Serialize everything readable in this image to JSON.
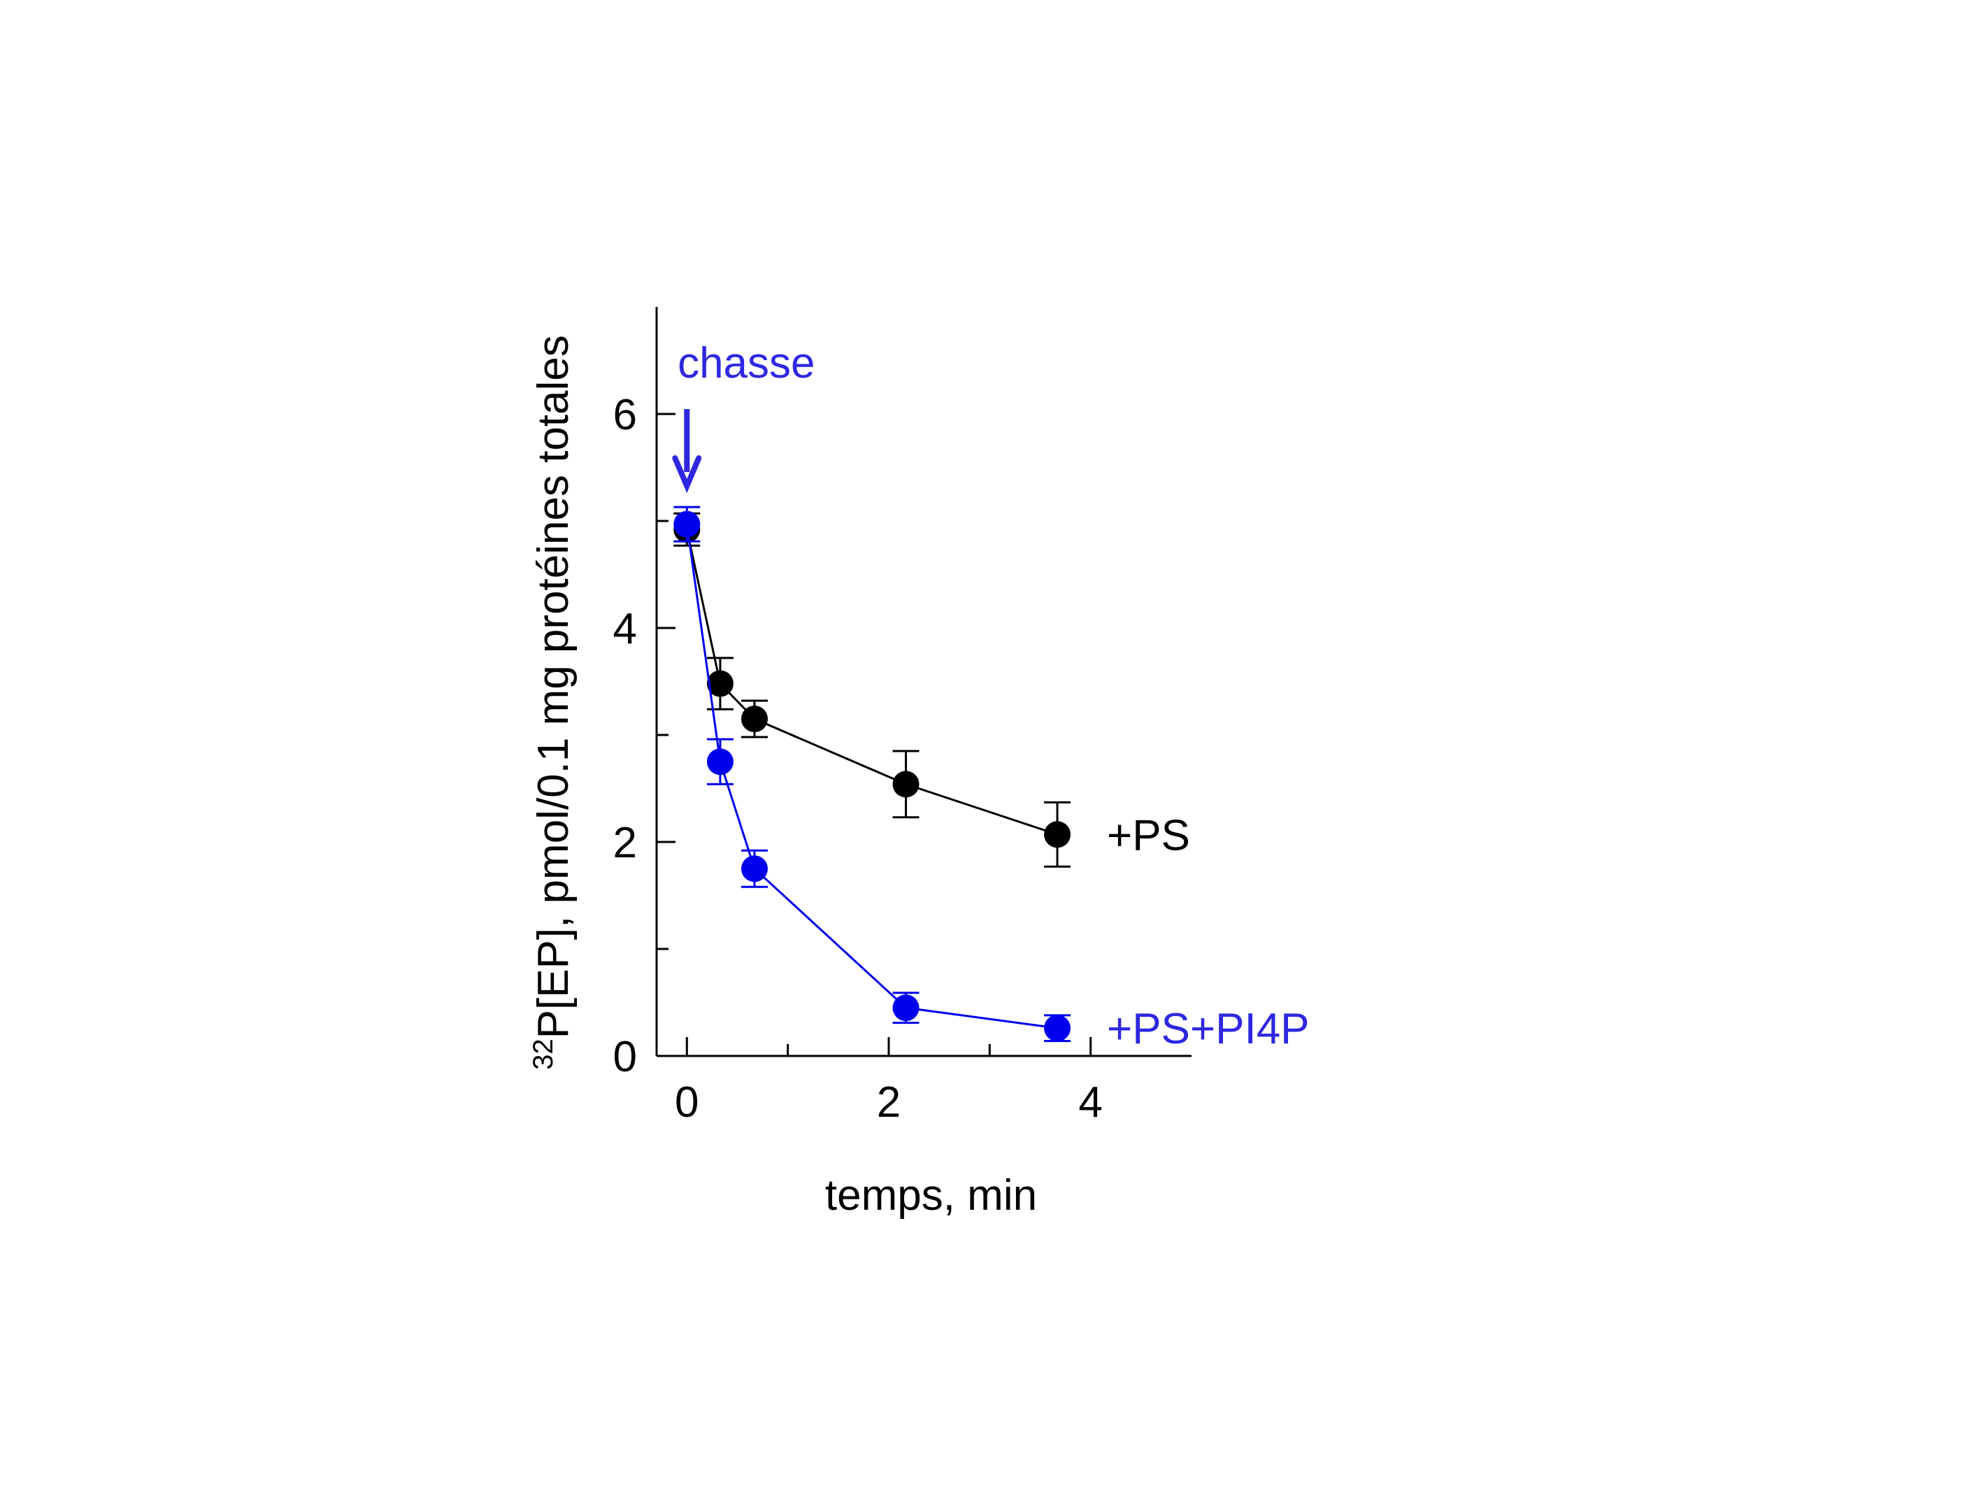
{
  "chart_data": {
    "type": "line",
    "title": "",
    "xlabel": "temps, min",
    "ylabel_superscript": "32",
    "ylabel": "P[EP], pmol/0.1 mg protéines totales",
    "xlim": [
      -0.3,
      5
    ],
    "ylim": [
      0,
      7
    ],
    "x_ticks": [
      0,
      2,
      4
    ],
    "x_minor_ticks": [
      1,
      3
    ],
    "y_ticks": [
      0,
      2,
      4,
      6
    ],
    "y_minor_ticks": [
      1,
      3,
      5
    ],
    "grid": false,
    "annotation": {
      "text": "chasse",
      "x": 0,
      "color": "#2f27e0"
    },
    "series": [
      {
        "name": "+PS",
        "color": "#000000",
        "x": [
          0,
          0.33,
          0.67,
          2.17,
          3.67
        ],
        "y": [
          4.92,
          3.48,
          3.15,
          2.54,
          2.07
        ],
        "err": [
          0.15,
          0.24,
          0.17,
          0.31,
          0.3
        ]
      },
      {
        "name": "+PS+PI4P",
        "color": "#0000ee",
        "label_color": "#2f27e0",
        "x": [
          0,
          0.33,
          0.67,
          2.17,
          3.67
        ],
        "y": [
          4.97,
          2.75,
          1.75,
          0.45,
          0.26
        ],
        "err": [
          0.16,
          0.21,
          0.17,
          0.14,
          0.12
        ]
      }
    ]
  }
}
